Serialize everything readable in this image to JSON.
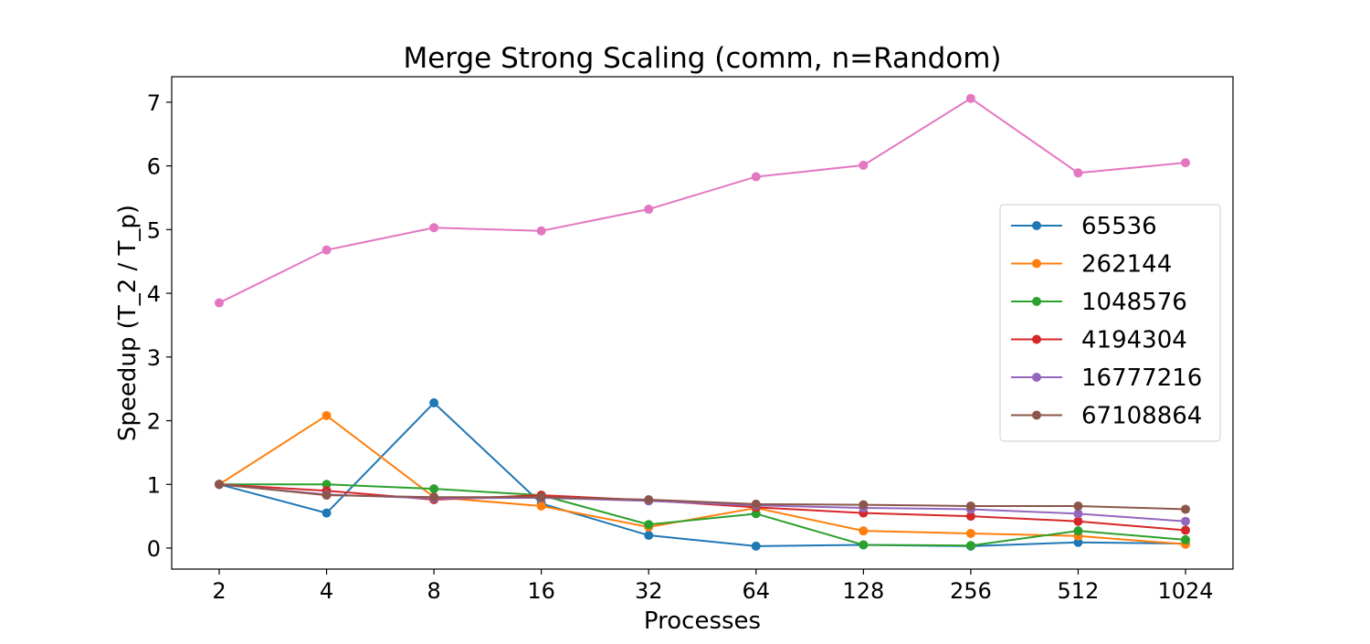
{
  "chart_data": {
    "type": "line",
    "title": "Merge Strong Scaling (comm, n=Random)",
    "xlabel": "Processes",
    "ylabel": "Speedup (T_2 / T_p)",
    "categories": [
      "2",
      "4",
      "8",
      "16",
      "32",
      "64",
      "128",
      "256",
      "512",
      "1024"
    ],
    "ylim": [
      -0.33,
      7.4
    ],
    "yticks": [
      0,
      1,
      2,
      3,
      4,
      5,
      6,
      7
    ],
    "grid": false,
    "legend_position": "center-right",
    "series": [
      {
        "name": "65536",
        "color": "#1f77b4",
        "values": [
          1.0,
          0.55,
          2.28,
          0.7,
          0.2,
          0.03,
          0.05,
          0.03,
          0.09,
          0.07
        ]
      },
      {
        "name": "262144",
        "color": "#ff7f0e",
        "values": [
          1.0,
          2.08,
          0.8,
          0.66,
          0.33,
          0.63,
          0.27,
          0.23,
          0.19,
          0.06
        ]
      },
      {
        "name": "1048576",
        "color": "#2ca02c",
        "values": [
          1.0,
          1.0,
          0.93,
          0.83,
          0.37,
          0.54,
          0.05,
          0.04,
          0.27,
          0.13
        ]
      },
      {
        "name": "4194304",
        "color": "#d62728",
        "values": [
          1.0,
          0.9,
          0.76,
          0.83,
          0.75,
          0.64,
          0.55,
          0.5,
          0.42,
          0.28
        ]
      },
      {
        "name": "16777216",
        "color": "#9467bd",
        "values": [
          1.0,
          0.84,
          0.78,
          0.79,
          0.74,
          0.67,
          0.63,
          0.61,
          0.54,
          0.42
        ]
      },
      {
        "name": "67108864",
        "color": "#8c564b",
        "values": [
          1.0,
          0.83,
          0.8,
          0.8,
          0.76,
          0.69,
          0.68,
          0.66,
          0.66,
          0.61
        ]
      },
      {
        "name": "",
        "color": "#e377c2",
        "values": [
          3.85,
          4.68,
          5.03,
          4.98,
          5.32,
          5.83,
          6.01,
          7.06,
          5.89,
          6.05
        ]
      }
    ]
  }
}
